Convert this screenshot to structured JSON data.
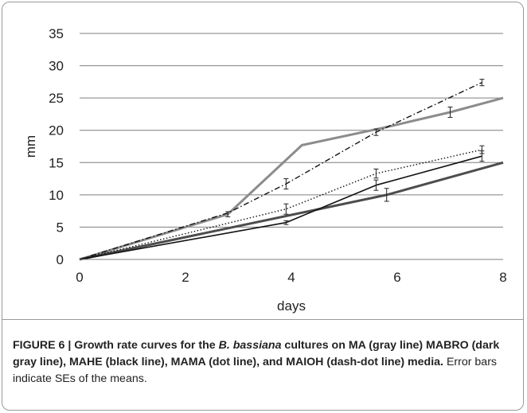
{
  "chart_data": {
    "type": "line",
    "xlabel": "days",
    "ylabel": "mm",
    "xlim": [
      0,
      8
    ],
    "ylim": [
      0,
      35
    ],
    "xticks": [
      0,
      2,
      4,
      6,
      8
    ],
    "yticks": [
      0,
      5,
      10,
      15,
      20,
      25,
      30,
      35
    ],
    "grid": "horizontal",
    "series": [
      {
        "key": "MA",
        "color": "#8c8c8c",
        "style": "solid-thick",
        "x": [
          0,
          2.8,
          4.2,
          5.8,
          7.0,
          8.0
        ],
        "y": [
          0,
          7,
          17.7,
          20.5,
          22.8,
          25
        ],
        "err": [
          0,
          0.4,
          0,
          0,
          0.8,
          0
        ]
      },
      {
        "key": "MABRO",
        "color": "#4d4d4d",
        "style": "solid-thick",
        "x": [
          0,
          5.8,
          8.0
        ],
        "y": [
          0,
          10,
          15
        ],
        "err": [
          0,
          1.0,
          0
        ]
      },
      {
        "key": "MAHE",
        "color": "#111111",
        "style": "solid-thin",
        "x": [
          0,
          3.9,
          5.6,
          7.6
        ],
        "y": [
          0,
          5.7,
          11.5,
          16
        ],
        "err": [
          0,
          0.3,
          0.8,
          0.8
        ]
      },
      {
        "key": "MAMA",
        "color": "#111111",
        "style": "dot",
        "x": [
          0,
          3.9,
          5.6,
          7.6
        ],
        "y": [
          0,
          7.8,
          13.3,
          17
        ],
        "err": [
          0,
          0.8,
          0.7,
          0.6
        ]
      },
      {
        "key": "MAIOH",
        "color": "#111111",
        "style": "dash-dot",
        "x": [
          0,
          2.8,
          3.9,
          5.6,
          7.6
        ],
        "y": [
          0,
          7.2,
          11.7,
          19.7,
          27.4
        ],
        "err": [
          0,
          0,
          0.8,
          0.5,
          0.5
        ]
      }
    ]
  },
  "caption": {
    "bold_prefix": "FIGURE 6 | Growth rate curves for the ",
    "italic_species": "B. bassiana",
    "bold_suffix": " cultures on MA (gray line) MABRO (dark gray line), MAHE (black line), MAMA (dot line), and MAIOH (dash-dot line) media.",
    "rest": " Error bars indicate SEs of the means."
  }
}
